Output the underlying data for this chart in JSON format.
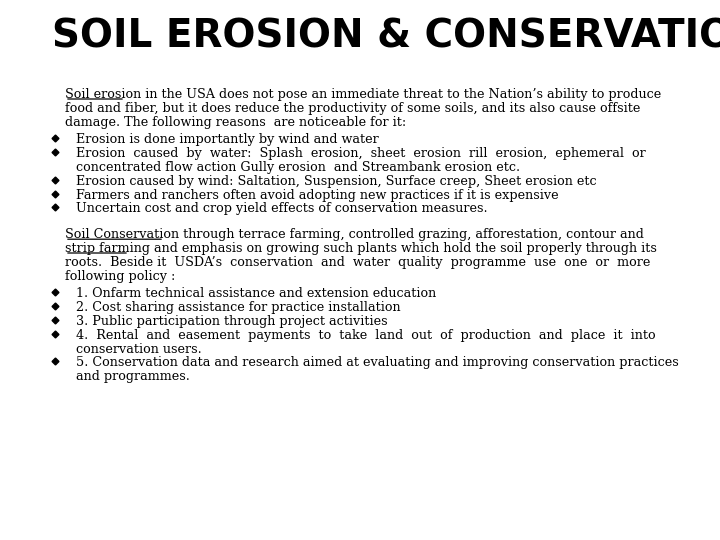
{
  "title": "SOIL EROSION & CONSERVATION",
  "background_color": "#ffffff",
  "title_color": "#000000",
  "text_color": "#000000",
  "title_fontsize": 28,
  "body_fontsize": 9.2,
  "intro_paragraph": "Soil erosion in the USA does not pose an immediate threat to the Nation’s ability to produce\nfood and fiber, but it does reduce the productivity of some soils, and its also cause offsite\ndamage. The following reasons  are noticeable for it:",
  "bullet_items_1": [
    "Erosion is done importantly by wind and water",
    "Erosion  caused  by  water:  Splash  erosion,  sheet  erosion  rill  erosion,  ephemeral  or\nconcentrated flow action Gully erosion  and Streambank erosion etc.",
    "Erosion caused by wind: Saltation, Suspension, Surface creep, Sheet erosion etc",
    "Farmers and ranchers often avoid adopting new practices if it is expensive",
    "Uncertain cost and crop yield effects of conservation measures."
  ],
  "conservation_paragraph": "Soil Conservation through terrace farming, controlled grazing, afforestation, contour and\nstrip farming and emphasis on growing such plants which hold the soil properly through its\nroots.  Beside it  USDA’s  conservation  and  water  quality  programme  use  one  or  more\nfollowing policy :",
  "bullet_items_2": [
    "1. Onfarm technical assistance and extension education",
    "2. Cost sharing assistance for practice installation",
    "3. Public participation through project activities",
    "4.  Rental  and  easement  payments  to  take  land  out  of  production  and  place  it  into\nconservation users.",
    "5. Conservation data and research aimed at evaluating and improving conservation practices\nand programmes."
  ]
}
